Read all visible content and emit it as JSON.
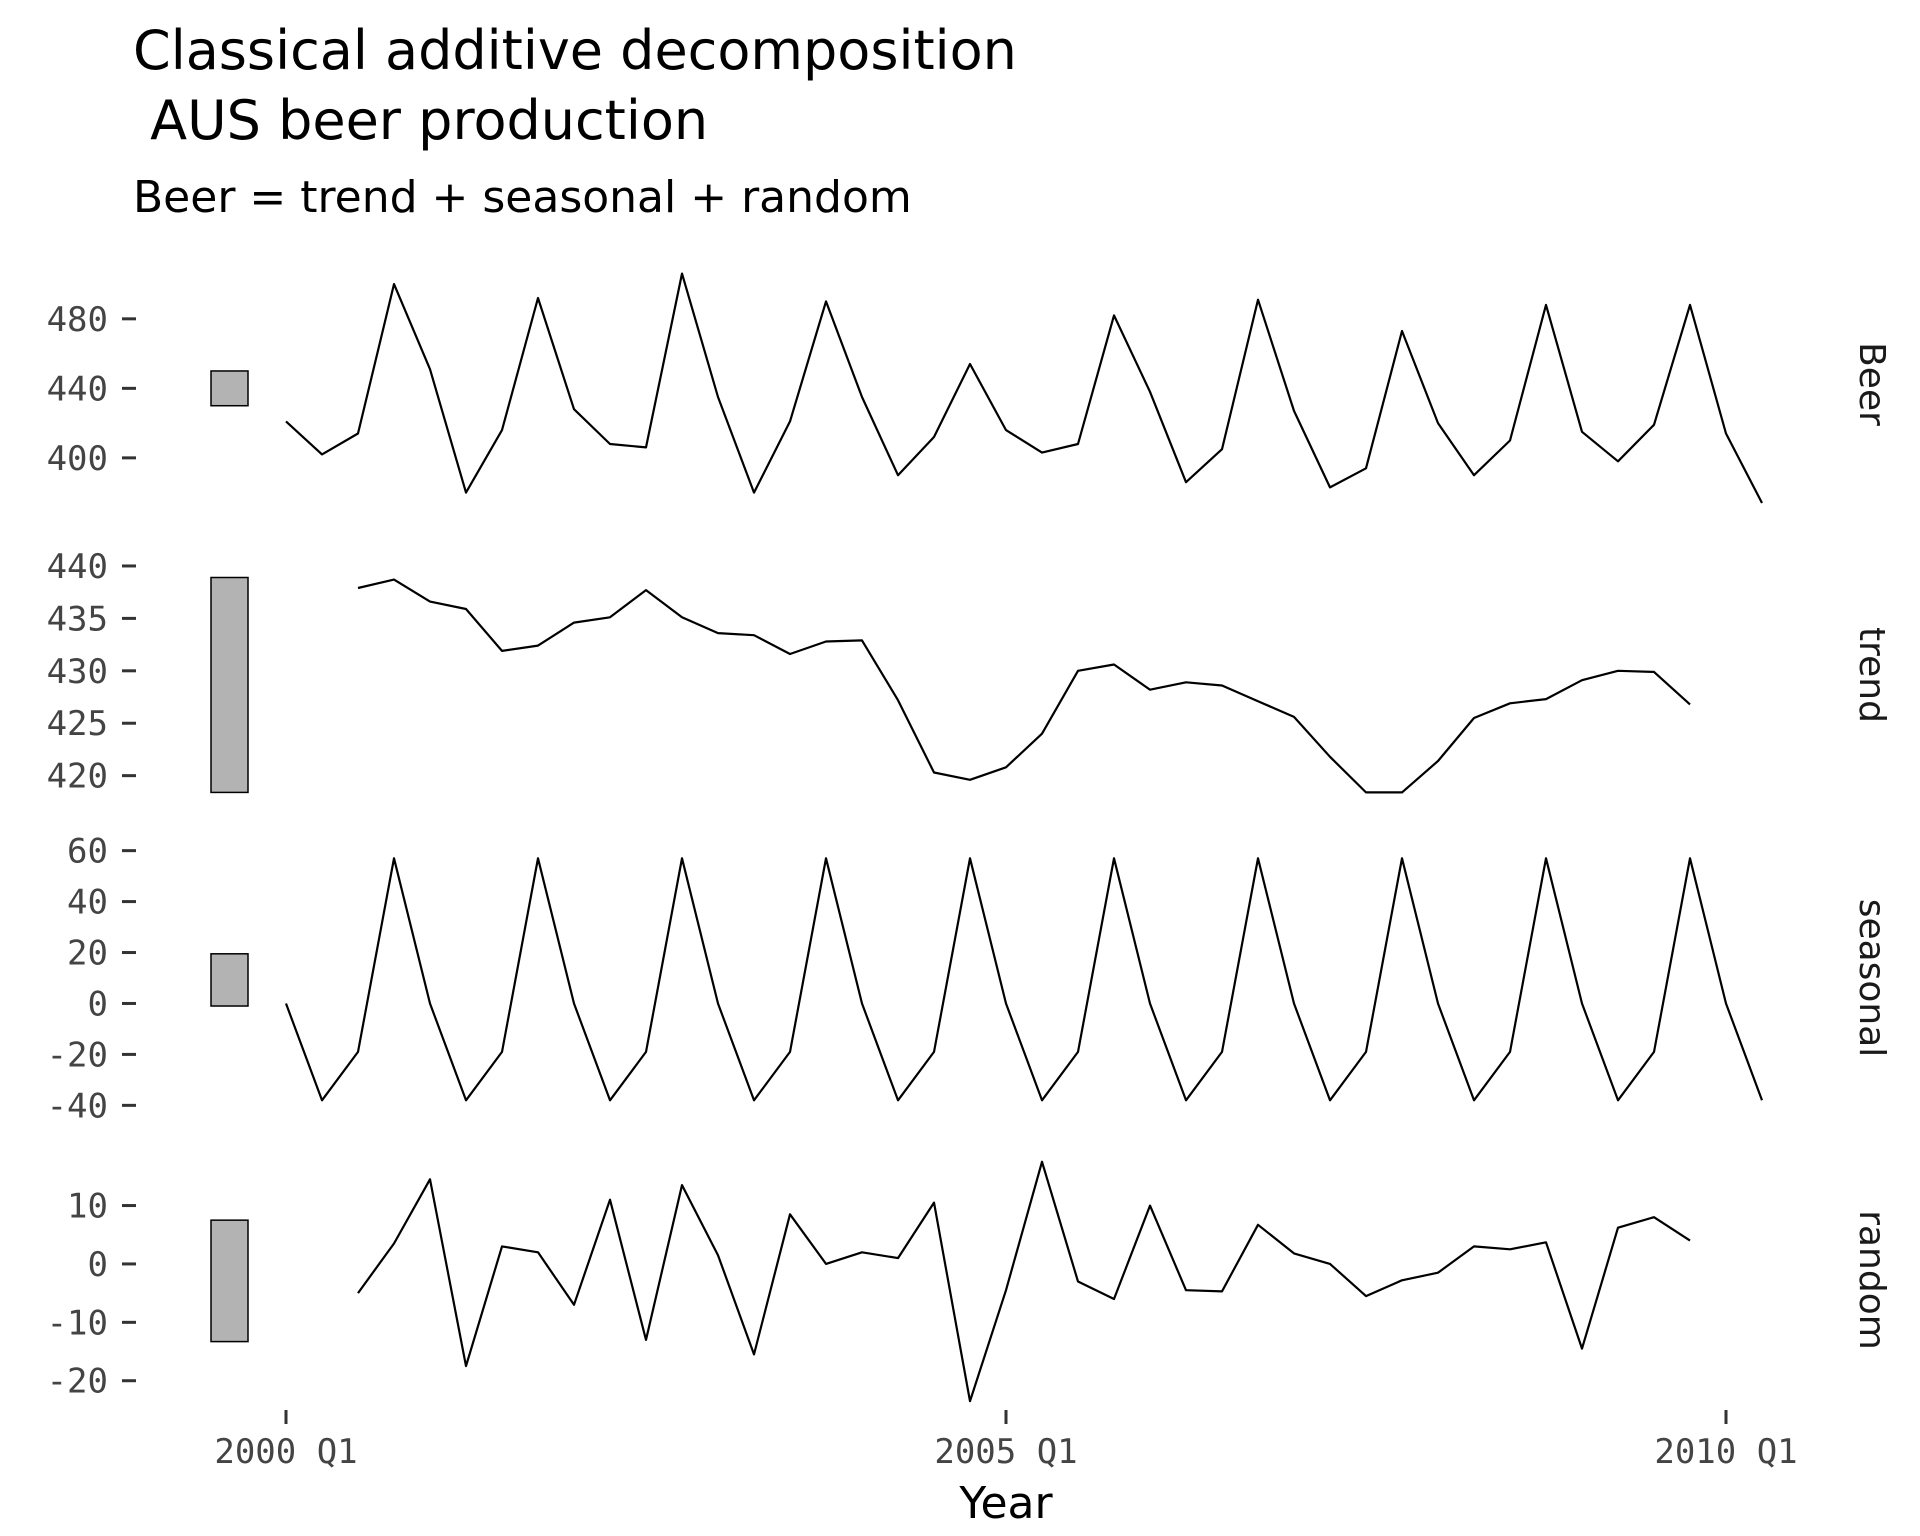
{
  "chart_data": {
    "type": "line",
    "title_lines": [
      "Classical additive decomposition",
      " AUS beer production"
    ],
    "subtitle": "Beer = trend + seasonal + random",
    "xlabel": "Year",
    "x_ticks": [
      "2000 Q1",
      "2005 Q1",
      "2010 Q1"
    ],
    "x_start": "2000 Q1",
    "x_end": "2010 Q2",
    "quarters": 42,
    "panels": [
      {
        "name": "Beer",
        "ylim": [
          370,
          515
        ],
        "yticks": [
          400,
          440,
          480
        ],
        "scale_bar": [
          430,
          450
        ],
        "values": [
          421,
          402,
          414,
          500,
          451,
          380,
          416,
          492,
          428,
          408,
          406,
          506,
          435,
          380,
          421,
          490,
          435,
          390,
          412,
          454,
          416,
          403,
          408,
          482,
          438,
          386,
          405,
          491,
          427,
          383,
          394,
          473,
          420,
          390,
          410,
          488,
          415,
          398,
          419,
          488,
          414,
          374
        ]
      },
      {
        "name": "trend",
        "ylim": [
          417.2,
          442
        ],
        "yticks": [
          420,
          425,
          430,
          435,
          440
        ],
        "scale_bar": [
          418.4,
          438.9
        ],
        "values": [
          null,
          null,
          437.9,
          438.7,
          436.6,
          435.9,
          431.9,
          432.4,
          434.6,
          435.1,
          437.7,
          435.1,
          433.6,
          433.4,
          431.6,
          432.8,
          432.9,
          427.2,
          420.3,
          419.6,
          420.8,
          424.0,
          430.0,
          430.6,
          428.2,
          428.9,
          428.6,
          427.1,
          425.6,
          421.8,
          418.4,
          418.4,
          421.4,
          425.5,
          426.9,
          427.3,
          429.1,
          430.0,
          429.9,
          426.8,
          null,
          null
        ]
      },
      {
        "name": "seasonal",
        "ylim": [
          -43,
          63
        ],
        "yticks": [
          -40,
          -20,
          0,
          20,
          40,
          60
        ],
        "scale_bar": [
          -1,
          19.5
        ],
        "values": [
          0,
          -38,
          -19,
          57,
          0,
          -38,
          -19,
          57,
          0,
          -38,
          -19,
          57,
          0,
          -38,
          -19,
          57,
          0,
          -38,
          -19,
          57,
          0,
          -38,
          -19,
          57,
          0,
          -38,
          -19,
          57,
          0,
          -38,
          -19,
          57,
          0,
          -38,
          -19,
          57,
          0,
          -38,
          -19,
          57,
          0,
          -38
        ]
      },
      {
        "name": "random",
        "ylim": [
          -24.5,
          19
        ],
        "yticks": [
          -20,
          -10,
          0,
          10
        ],
        "scale_bar": [
          -13.3,
          7.5
        ],
        "values": [
          null,
          null,
          -5,
          3.5,
          14.5,
          -17.5,
          3,
          2,
          -7,
          11,
          -13,
          13.5,
          1.5,
          -15.5,
          8.5,
          0,
          2,
          1,
          10.5,
          -23.5,
          -4.5,
          17.5,
          -3,
          -6,
          10,
          -4.5,
          -4.7,
          6.7,
          1.8,
          0,
          -5.5,
          -2.8,
          -1.5,
          3,
          2.5,
          3.7,
          -14.5,
          6.2,
          8,
          4,
          null,
          null
        ]
      }
    ]
  }
}
